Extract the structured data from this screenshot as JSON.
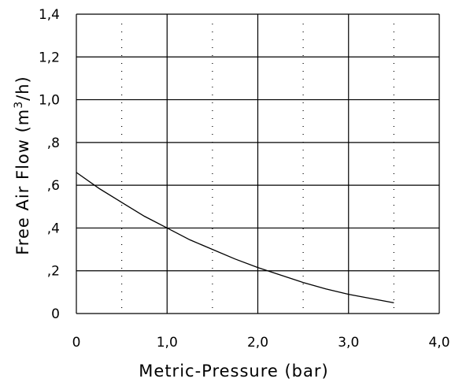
{
  "chart_data": {
    "type": "line",
    "title": "",
    "xlabel": "Metric-Pressure (bar)",
    "ylabel_main": "Free Air Flow (m",
    "ylabel_sup": "3",
    "ylabel_tail": "/h)",
    "xlim": [
      0,
      4
    ],
    "ylim": [
      0,
      1.4
    ],
    "x_ticks": [
      0,
      1,
      2,
      3,
      4
    ],
    "x_tick_labels": [
      "0",
      "1,0",
      "2,0",
      "3,0",
      "4,0"
    ],
    "y_ticks": [
      0,
      0.2,
      0.4,
      0.6,
      0.8,
      1.0,
      1.2,
      1.4
    ],
    "y_tick_labels": [
      "0",
      ",2",
      ",4",
      ",6",
      ",8",
      "1,0",
      "1,2",
      "1,4"
    ],
    "minor_x": [
      0.5,
      1.5,
      2.5,
      3.5
    ],
    "grid": true,
    "series": [
      {
        "x": [
          0,
          0.25,
          0.5,
          0.75,
          1.0,
          1.25,
          1.5,
          1.75,
          2.0,
          2.25,
          2.5,
          2.75,
          3.0,
          3.25,
          3.5
        ],
        "y": [
          0.66,
          0.585,
          0.52,
          0.455,
          0.4,
          0.345,
          0.3,
          0.255,
          0.215,
          0.18,
          0.145,
          0.115,
          0.09,
          0.07,
          0.05
        ]
      }
    ]
  }
}
